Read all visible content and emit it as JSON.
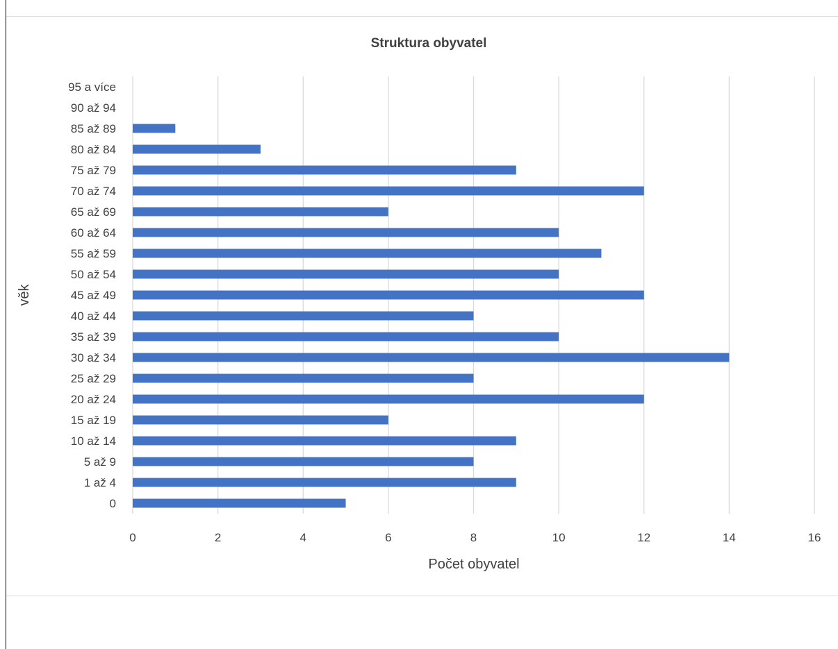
{
  "chart_data": {
    "type": "bar",
    "orientation": "horizontal",
    "title": "Struktura obyvatel",
    "xlabel": "Počet obyvatel",
    "ylabel": "věk",
    "categories": [
      "0",
      "1 až 4",
      "5 až 9",
      "10 až 14",
      "15 až 19",
      "20 až 24",
      "25 až 29",
      "30 až 34",
      "35 až 39",
      "40 až 44",
      "45 až 49",
      "50 až 54",
      "55 až 59",
      "60 až 64",
      "65 až 69",
      "70 až 74",
      "75 až 79",
      "80 až 84",
      "85 až 89",
      "90 až 94",
      "95 a více"
    ],
    "values": [
      5,
      9,
      8,
      9,
      6,
      12,
      8,
      14,
      10,
      8,
      12,
      10,
      11,
      10,
      6,
      12,
      9,
      3,
      1,
      0,
      0
    ],
    "xlim": [
      0,
      16
    ],
    "xticks": [
      "0",
      "2",
      "4",
      "6",
      "8",
      "10",
      "12",
      "14",
      "16"
    ],
    "grid": true,
    "legend": "none",
    "bar_color": "#4472c4",
    "grid_color": "#d9d9d9",
    "text_color": "#404040"
  }
}
